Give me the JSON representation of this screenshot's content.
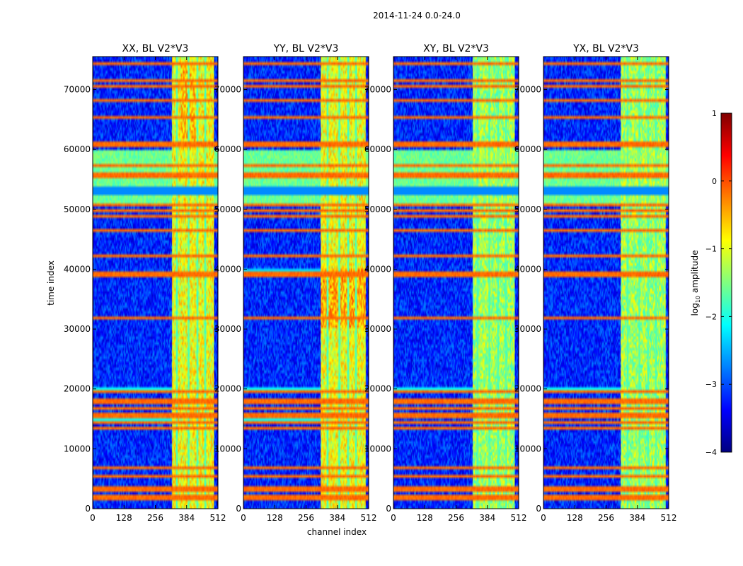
{
  "figure_title": "2014-11-24 0.0-24.0",
  "colors": {
    "background": "#ffffff",
    "axis": "#000000",
    "jet_low": "#00007f",
    "jet_blue": "#0000ff",
    "jet_cyan": "#00ffff",
    "jet_green": "#7fff7f",
    "jet_yellow": "#ffff00",
    "jet_orange": "#ff7f00",
    "jet_high": "#7f0000"
  },
  "chart_data": {
    "type": "heatmap",
    "colormap": "jet",
    "xlabel": "channel index",
    "ylabel": "time index",
    "xlim": [
      0,
      512
    ],
    "ylim": [
      0,
      75500
    ],
    "x_ticks": [
      0,
      128,
      256,
      384,
      512
    ],
    "y_ticks": [
      0,
      10000,
      20000,
      30000,
      40000,
      50000,
      60000,
      70000
    ],
    "panels": [
      {
        "title": "XX, BL V2*V3",
        "profile": "XX"
      },
      {
        "title": "YY, BL V2*V3",
        "profile": "YY"
      },
      {
        "title": "XY, BL V2*V3",
        "profile": "XY"
      },
      {
        "title": "YX, BL V2*V3",
        "profile": "YX"
      }
    ],
    "colorbar": {
      "label": "log10 amplitude",
      "label_prefix": "log",
      "label_sub": "10",
      "label_suffix": " amplitude",
      "range": [
        -4,
        1
      ],
      "ticks": [
        1,
        0,
        -1,
        -2,
        -3,
        -4
      ],
      "tick_labels": [
        "1",
        "0",
        "−1",
        "−2",
        "−3",
        "−4"
      ]
    },
    "notes": {
      "background_level": -3.2,
      "high_amplitude_channel_band": [
        325,
        495
      ],
      "broadband_rfi_time_range": [
        50500,
        60000
      ],
      "broadband_rfi_level": -1.6,
      "rfi_lines_time": [
        1500,
        2200,
        2900,
        3700,
        5500,
        7000,
        13500,
        14200,
        15200,
        16000,
        16700,
        17500,
        18200,
        19400,
        32000,
        39000,
        39500,
        42000,
        46500,
        49000,
        49600,
        50500,
        55300,
        55800,
        57500,
        60500,
        61000,
        65500,
        68000,
        70500,
        71500,
        74500
      ]
    }
  }
}
